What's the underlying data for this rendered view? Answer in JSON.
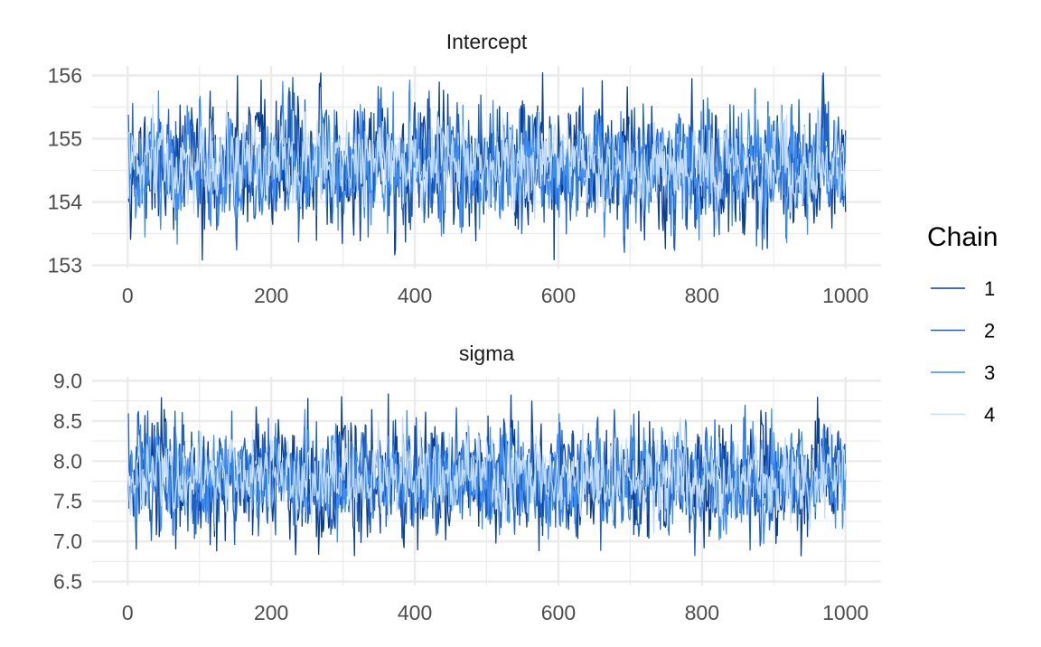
{
  "chart_data": {
    "type": "line",
    "chart_kind": "mcmc-trace",
    "grid": true,
    "legend_placement": "right",
    "legend": {
      "title": "Chain",
      "entries": [
        {
          "name": "1",
          "color": "#0b3d91"
        },
        {
          "name": "2",
          "color": "#1e62c8"
        },
        {
          "name": "3",
          "color": "#3d8df2"
        },
        {
          "name": "4",
          "color": "#c2dcfb"
        }
      ]
    },
    "iterations": 1000,
    "panels": [
      {
        "title": "Intercept",
        "xlim": [
          0,
          1000
        ],
        "ylim": [
          152.95,
          156.15
        ],
        "x_ticks": [
          "0",
          "200",
          "400",
          "600",
          "800",
          "1000"
        ],
        "x_tick_values": [
          0,
          200,
          400,
          600,
          800,
          1000
        ],
        "y_ticks": [
          "153",
          "154",
          "155",
          "156"
        ],
        "y_tick_values": [
          153,
          154,
          155,
          156
        ],
        "series": [
          {
            "name": "1",
            "center": 154.56,
            "spread": 0.48,
            "lo": 153.05,
            "hi": 156.08,
            "seed": 11
          },
          {
            "name": "2",
            "center": 154.56,
            "spread": 0.44,
            "lo": 153.2,
            "hi": 156.0,
            "seed": 23
          },
          {
            "name": "3",
            "center": 154.56,
            "spread": 0.42,
            "lo": 153.3,
            "hi": 155.95,
            "seed": 37
          },
          {
            "name": "4",
            "center": 154.57,
            "spread": 0.32,
            "lo": 153.4,
            "hi": 155.8,
            "seed": 51
          }
        ]
      },
      {
        "title": "sigma",
        "xlim": [
          0,
          1000
        ],
        "ylim": [
          6.45,
          9.05
        ],
        "x_ticks": [
          "0",
          "200",
          "400",
          "600",
          "800",
          "1000"
        ],
        "x_tick_values": [
          0,
          200,
          400,
          600,
          800,
          1000
        ],
        "y_ticks": [
          "6.5",
          "7.0",
          "7.5",
          "8.0",
          "8.5",
          "9.0"
        ],
        "y_tick_values": [
          6.5,
          7.0,
          7.5,
          8.0,
          8.5,
          9.0
        ],
        "series": [
          {
            "name": "1",
            "center": 7.78,
            "spread": 0.36,
            "lo": 6.8,
            "hi": 8.85,
            "seed": 67
          },
          {
            "name": "2",
            "center": 7.78,
            "spread": 0.33,
            "lo": 6.55,
            "hi": 8.9,
            "seed": 79
          },
          {
            "name": "3",
            "center": 7.78,
            "spread": 0.31,
            "lo": 6.9,
            "hi": 8.8,
            "seed": 83
          },
          {
            "name": "4",
            "center": 7.79,
            "spread": 0.24,
            "lo": 7.0,
            "hi": 8.75,
            "seed": 97
          }
        ]
      }
    ]
  }
}
